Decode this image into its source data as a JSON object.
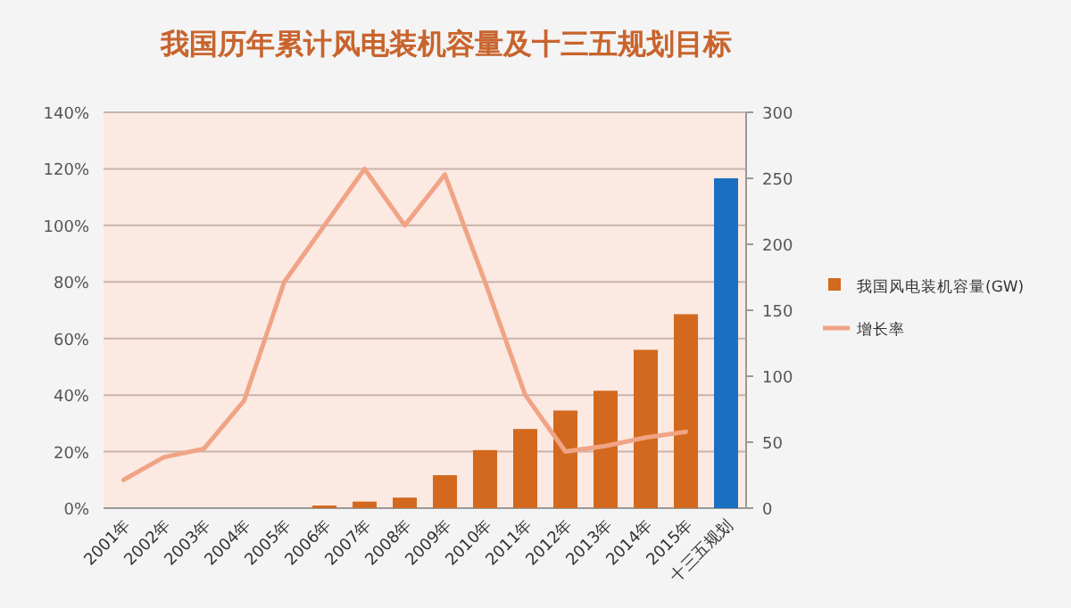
{
  "chart_data": {
    "type": "bar",
    "title": "我国历年累计风电装机容量及十三五规划目标",
    "categories": [
      "2001年",
      "2002年",
      "2003年",
      "2004年",
      "2005年",
      "2006年",
      "2007年",
      "2008年",
      "2009年",
      "2010年",
      "2011年",
      "2012年",
      "2013年",
      "2014年",
      "2015年",
      "十三五规划"
    ],
    "series": [
      {
        "name": "我国风电装机容量(GW)",
        "axis": "y2",
        "color": "#d2691e",
        "colors": [
          "#d2691e",
          "#d2691e",
          "#d2691e",
          "#d2691e",
          "#d2691e",
          "#d2691e",
          "#d2691e",
          "#d2691e",
          "#d2691e",
          "#d2691e",
          "#d2691e",
          "#d2691e",
          "#d2691e",
          "#d2691e",
          "#d2691e",
          "#1a6fc2"
        ],
        "values": [
          0,
          0,
          0,
          0,
          0,
          2,
          5,
          8,
          25,
          44,
          60,
          74,
          89,
          120,
          147,
          250
        ]
      },
      {
        "name": "增长率",
        "type": "line",
        "color": "#f0a485",
        "values": [
          10,
          18,
          21,
          38,
          80,
          100,
          120,
          100,
          118,
          80,
          40,
          20,
          22,
          25,
          27,
          null
        ]
      }
    ],
    "ylim": [
      0,
      140
    ],
    "yticks": [
      {
        "value": 0,
        "label": "0%"
      },
      {
        "value": 20,
        "label": "20%"
      },
      {
        "value": 40,
        "label": "40%"
      },
      {
        "value": 60,
        "label": "60%"
      },
      {
        "value": 80,
        "label": "80%"
      },
      {
        "value": 100,
        "label": "100%"
      },
      {
        "value": 120,
        "label": "120%"
      },
      {
        "value": 140,
        "label": "140%"
      }
    ],
    "y2lim": [
      0,
      300
    ],
    "y2ticks": [
      0,
      50,
      100,
      150,
      200,
      250,
      300
    ],
    "grid": "y",
    "legend": "right"
  }
}
